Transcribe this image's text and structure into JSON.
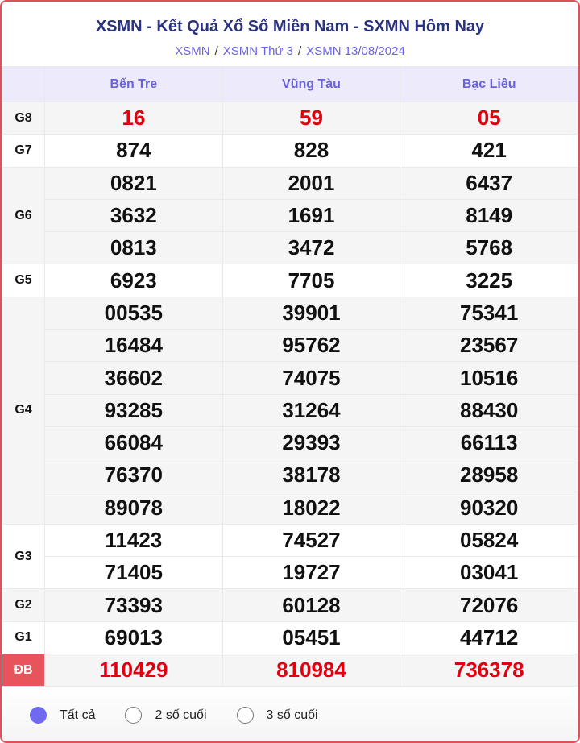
{
  "title": "XSMN - Kết Quả Xổ Số Miền Nam - SXMN Hôm Nay",
  "breadcrumb": [
    "XSMN",
    "XSMN Thứ 3",
    "XSMN 13/08/2024"
  ],
  "provinces": [
    "Bến Tre",
    "Vũng Tàu",
    "Bạc Liêu"
  ],
  "prizes": [
    {
      "label": "G8",
      "red": true,
      "rows": [
        [
          "16",
          "59",
          "05"
        ]
      ]
    },
    {
      "label": "G7",
      "rows": [
        [
          "874",
          "828",
          "421"
        ]
      ]
    },
    {
      "label": "G6",
      "rows": [
        [
          "0821",
          "2001",
          "6437"
        ],
        [
          "3632",
          "1691",
          "8149"
        ],
        [
          "0813",
          "3472",
          "5768"
        ]
      ]
    },
    {
      "label": "G5",
      "rows": [
        [
          "6923",
          "7705",
          "3225"
        ]
      ]
    },
    {
      "label": "G4",
      "rows": [
        [
          "00535",
          "39901",
          "75341"
        ],
        [
          "16484",
          "95762",
          "23567"
        ],
        [
          "36602",
          "74075",
          "10516"
        ],
        [
          "93285",
          "31264",
          "88430"
        ],
        [
          "66084",
          "29393",
          "66113"
        ],
        [
          "76370",
          "38178",
          "28958"
        ],
        [
          "89078",
          "18022",
          "90320"
        ]
      ]
    },
    {
      "label": "G3",
      "rows": [
        [
          "11423",
          "74527",
          "05824"
        ],
        [
          "71405",
          "19727",
          "03041"
        ]
      ]
    },
    {
      "label": "G2",
      "rows": [
        [
          "73393",
          "60128",
          "72076"
        ]
      ]
    },
    {
      "label": "G1",
      "rows": [
        [
          "69013",
          "05451",
          "44712"
        ]
      ]
    },
    {
      "label": "ĐB",
      "red": true,
      "special": true,
      "rows": [
        [
          "110429",
          "810984",
          "736378"
        ]
      ]
    }
  ],
  "filters": [
    {
      "label": "Tất cả",
      "selected": true
    },
    {
      "label": "2 số cuối",
      "selected": false
    },
    {
      "label": "3 số cuối",
      "selected": false
    }
  ],
  "colors": {
    "accent": "#6a63e0",
    "title": "#2b3380",
    "prize_red": "#e0000f",
    "border": "#e0505a"
  }
}
